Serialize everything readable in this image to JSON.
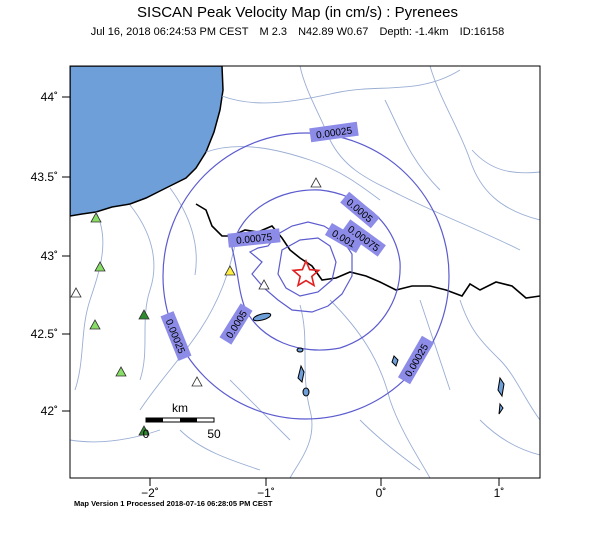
{
  "header": {
    "title": "SISCAN Peak Velocity Map (in cm/s) : Pyrenees",
    "date": "Jul 16, 2018 06:24:53 PM CEST",
    "magnitude": "M 2.3",
    "location": "N42.89 W0.67",
    "depth": "Depth: -1.4km",
    "id": "ID:16158"
  },
  "axes": {
    "lat_labels": [
      "44˚",
      "43.5˚",
      "43˚",
      "42.5˚",
      "42˚"
    ],
    "lon_labels": [
      "−2˚",
      "−1˚",
      "0˚",
      "1˚"
    ]
  },
  "contours": {
    "labels": [
      "0.00025",
      "0.0005",
      "0.00075",
      "0.001",
      "0.00075",
      "0.0005",
      "0.00025",
      "0.00025"
    ]
  },
  "scale_bar": {
    "title": "km",
    "min": "0",
    "max": "50"
  },
  "footer": {
    "text": "Map Version 1 Processed 2018-07-16 06:28:05 PM CEST"
  },
  "colors": {
    "sea": "#6f9fd8",
    "contour": "#5c5ccf",
    "river": "#9aaed4",
    "label_bg": "#8c8ce8",
    "epicenter": "#e02020"
  }
}
